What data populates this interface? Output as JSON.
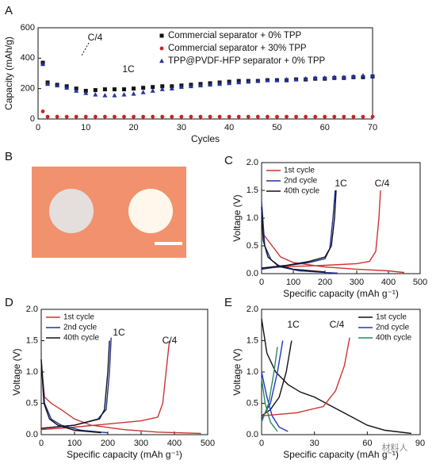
{
  "photo_panel": {
    "label": "B"
  },
  "watermark": "材料人",
  "chart_data": [
    {
      "type": "scatter",
      "panel": "A",
      "xlabel": "Cycles",
      "ylabel": "Capacity (mAh/g)",
      "xlim": [
        0,
        70
      ],
      "xticks": [
        0,
        10,
        20,
        30,
        40,
        50,
        60,
        70
      ],
      "ylim": [
        0,
        600
      ],
      "yticks": [
        0,
        200,
        400,
        600
      ],
      "legend": "upper right",
      "annotations": [
        "C/4",
        "1C"
      ],
      "series": [
        {
          "name": "Commercial separator + 0% TPP",
          "color": "#111111",
          "marker": "square",
          "x": [
            1,
            2,
            4,
            6,
            8,
            10,
            12,
            14,
            16,
            18,
            20,
            22,
            24,
            26,
            28,
            30,
            32,
            34,
            36,
            38,
            40,
            42,
            44,
            46,
            48,
            50,
            52,
            54,
            56,
            58,
            60,
            62,
            64,
            66,
            68,
            70
          ],
          "values": [
            370,
            240,
            225,
            215,
            200,
            185,
            190,
            195,
            195,
            195,
            200,
            205,
            210,
            215,
            215,
            220,
            225,
            230,
            235,
            240,
            245,
            250,
            250,
            250,
            255,
            255,
            255,
            260,
            260,
            265,
            265,
            270,
            270,
            275,
            275,
            280
          ]
        },
        {
          "name": "Commercial separator + 30% TPP",
          "color": "#cc2222",
          "marker": "circle",
          "x": [
            1,
            2,
            4,
            6,
            8,
            10,
            12,
            14,
            16,
            18,
            20,
            22,
            24,
            26,
            28,
            30,
            32,
            34,
            36,
            38,
            40,
            42,
            44,
            46,
            48,
            50,
            52,
            54,
            56,
            58,
            60,
            62,
            64,
            66,
            68,
            70
          ],
          "values": [
            50,
            15,
            15,
            15,
            15,
            15,
            15,
            15,
            15,
            15,
            15,
            15,
            15,
            15,
            15,
            15,
            15,
            15,
            15,
            15,
            15,
            15,
            15,
            15,
            15,
            15,
            15,
            15,
            15,
            15,
            15,
            15,
            15,
            15,
            15,
            15
          ]
        },
        {
          "name": "TPP@PVDF-HFP separator + 0% TPP",
          "color": "#2233aa",
          "marker": "triangle",
          "x": [
            1,
            2,
            4,
            6,
            8,
            10,
            12,
            14,
            16,
            18,
            20,
            22,
            24,
            26,
            28,
            30,
            32,
            34,
            36,
            38,
            40,
            42,
            44,
            46,
            48,
            50,
            52,
            54,
            56,
            58,
            60,
            62,
            64,
            66,
            68,
            70
          ],
          "values": [
            360,
            230,
            220,
            205,
            185,
            170,
            160,
            155,
            155,
            160,
            165,
            175,
            185,
            195,
            200,
            210,
            215,
            220,
            225,
            230,
            235,
            240,
            245,
            250,
            255,
            255,
            260,
            260,
            265,
            270,
            270,
            275,
            275,
            280,
            285,
            285
          ]
        }
      ]
    },
    {
      "type": "line",
      "panel": "C",
      "xlabel": "Specific capacity (mAh g⁻¹)",
      "ylabel": "Voltage (V)",
      "xlim": [
        0,
        500
      ],
      "xticks": [
        0,
        100,
        200,
        300,
        400,
        500
      ],
      "ylim": [
        0,
        2
      ],
      "yticks": [
        {
          "value": 0,
          "label": "0.0"
        },
        0.5,
        {
          "value": 1,
          "label": "1.0"
        },
        1.5,
        {
          "value": 2,
          "label": "2.0"
        }
      ],
      "legend": "upper left",
      "annotations": [
        "1C",
        "C/4"
      ],
      "series": [
        {
          "name": "1st cycle",
          "color": "#cc3333",
          "x": [
            0,
            20,
            40,
            60,
            100,
            200,
            300,
            400,
            450,
            null,
            0,
            100,
            200,
            300,
            340,
            360,
            370,
            375
          ],
          "values": [
            0.75,
            0.6,
            0.45,
            0.3,
            0.2,
            0.12,
            0.08,
            0.05,
            0.02,
            null,
            0.1,
            0.13,
            0.15,
            0.18,
            0.22,
            0.4,
            1.0,
            1.5
          ]
        },
        {
          "name": "2nd cycle",
          "color": "#223399",
          "x": [
            0,
            10,
            30,
            60,
            120,
            200,
            240,
            null,
            0,
            50,
            150,
            200,
            215,
            225,
            232
          ],
          "values": [
            1.3,
            0.5,
            0.25,
            0.12,
            0.05,
            0.02,
            0.01,
            null,
            0.08,
            0.12,
            0.2,
            0.27,
            0.45,
            1.0,
            1.5
          ]
        },
        {
          "name": "40th cycle",
          "color": "#111111",
          "x": [
            0,
            5,
            20,
            50,
            100,
            200,
            null,
            0,
            80,
            150,
            200,
            220,
            230,
            235
          ],
          "values": [
            1.2,
            0.6,
            0.3,
            0.15,
            0.08,
            0.03,
            null,
            0.1,
            0.15,
            0.22,
            0.3,
            0.5,
            1.0,
            1.5
          ]
        }
      ]
    },
    {
      "type": "line",
      "panel": "D",
      "xlabel": "Specific capacity (mAh g⁻¹)",
      "ylabel": "Voltage (V)",
      "xlim": [
        0,
        500
      ],
      "xticks": [
        0,
        100,
        200,
        300,
        400,
        500
      ],
      "ylim": [
        0,
        2
      ],
      "yticks": [
        {
          "value": 0,
          "label": "0.0"
        },
        0.5,
        {
          "value": 1,
          "label": "1.0"
        },
        1.5,
        {
          "value": 2,
          "label": "2.0"
        }
      ],
      "legend": "upper left",
      "annotations": [
        "1C",
        "C/4"
      ],
      "series": [
        {
          "name": "1st cycle",
          "color": "#cc3333",
          "x": [
            0,
            10,
            30,
            60,
            100,
            150,
            250,
            350,
            480,
            null,
            0,
            100,
            200,
            300,
            350,
            365,
            375,
            385
          ],
          "values": [
            1.15,
            0.6,
            0.5,
            0.4,
            0.25,
            0.15,
            0.08,
            0.04,
            0.02,
            null,
            0.08,
            0.12,
            0.17,
            0.22,
            0.28,
            0.5,
            1.0,
            1.5
          ]
        },
        {
          "name": "2nd cycle",
          "color": "#223399",
          "x": [
            0,
            10,
            30,
            60,
            120,
            200,
            null,
            0,
            100,
            170,
            195,
            205,
            210
          ],
          "values": [
            1.2,
            0.5,
            0.25,
            0.15,
            0.07,
            0.03,
            null,
            0.1,
            0.15,
            0.25,
            0.4,
            1.0,
            1.55
          ]
        },
        {
          "name": "40th cycle",
          "color": "#111111",
          "x": [
            0,
            8,
            25,
            50,
            100,
            180,
            null,
            0,
            100,
            175,
            190,
            200,
            205
          ],
          "values": [
            1.2,
            0.5,
            0.25,
            0.15,
            0.07,
            0.03,
            null,
            0.1,
            0.15,
            0.25,
            0.4,
            1.0,
            1.5
          ]
        }
      ]
    },
    {
      "type": "line",
      "panel": "E",
      "xlabel": "Specific capacity (mAh g⁻¹)",
      "ylabel": "Voltage (V)",
      "xlim": [
        0,
        90
      ],
      "xticks": [
        0,
        30,
        60,
        90
      ],
      "ylim": [
        0,
        2
      ],
      "yticks": [
        {
          "value": 0,
          "label": "0.0"
        },
        0.5,
        {
          "value": 1,
          "label": "1.0"
        },
        1.5,
        {
          "value": 2,
          "label": "2.0"
        }
      ],
      "legend": "upper right",
      "annotations": [
        "1C",
        "C/4"
      ],
      "series": [
        {
          "name": "1st cycle",
          "color": "#111111",
          "x": [
            0,
            3,
            8,
            15,
            22,
            30,
            40,
            50,
            60,
            70,
            85,
            null,
            0,
            5,
            10,
            14,
            17
          ],
          "values": [
            1.85,
            1.3,
            1.0,
            0.8,
            0.68,
            0.6,
            0.45,
            0.3,
            0.15,
            0.07,
            0.02,
            null,
            0.3,
            0.4,
            0.6,
            1.0,
            1.5
          ]
        },
        {
          "name": "2nd cycle",
          "color": "#2233cc",
          "x": [
            0,
            3,
            6,
            10,
            15,
            null,
            0,
            5,
            9,
            12
          ],
          "values": [
            1.0,
            0.6,
            0.3,
            0.12,
            0.05,
            null,
            0.25,
            0.5,
            1.0,
            1.5
          ]
        },
        {
          "name": "40th cycle",
          "color": "#2a8a5a",
          "x": [
            0,
            2,
            5,
            9,
            null,
            0,
            4,
            7,
            9
          ],
          "values": [
            0.9,
            0.5,
            0.2,
            0.05,
            null,
            0.2,
            0.5,
            1.0,
            1.4
          ]
        },
        {
          "color": "#cc3333",
          "x": [
            0,
            20,
            35,
            42,
            47,
            50
          ],
          "values": [
            0.3,
            0.35,
            0.45,
            0.7,
            1.1,
            1.55
          ]
        }
      ]
    }
  ]
}
